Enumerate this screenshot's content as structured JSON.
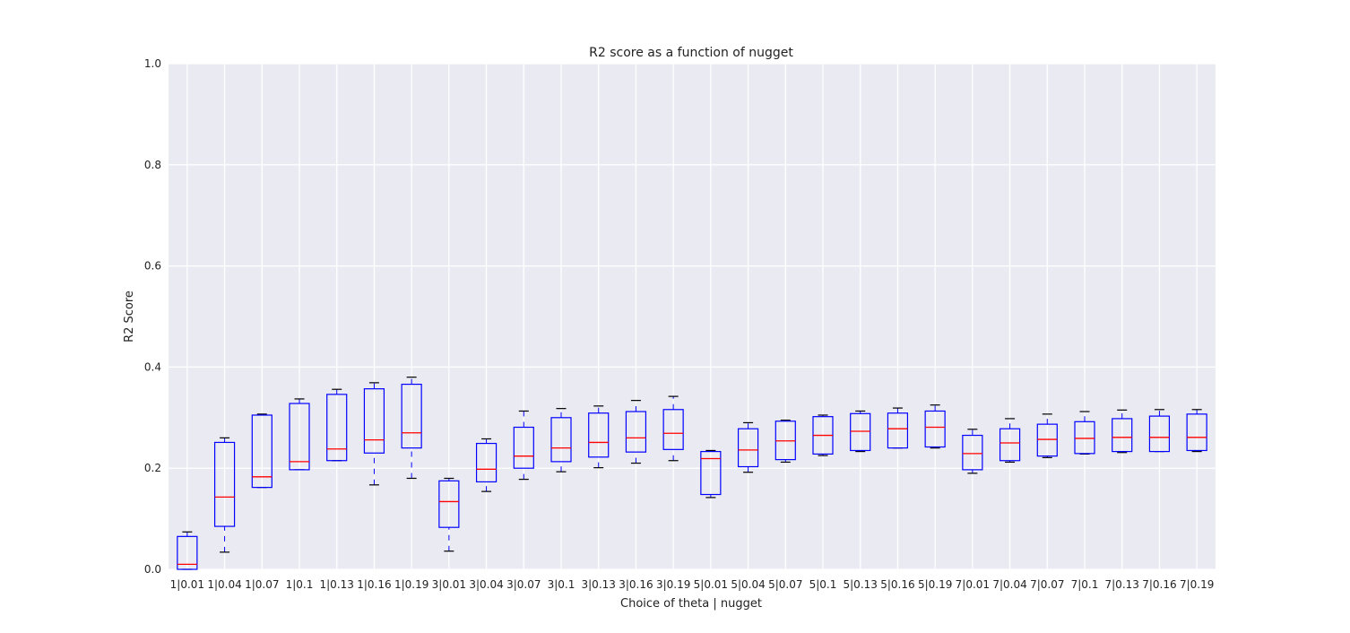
{
  "chart_data": {
    "type": "box",
    "title": "R2 score as a function of nugget",
    "xlabel": "Choice of theta | nugget",
    "ylabel": "R2 Score",
    "ylim": [
      0,
      1
    ],
    "yticks": [
      "0.0",
      "0.2",
      "0.4",
      "0.6",
      "0.8",
      "1.0"
    ],
    "grid": true,
    "colors": {
      "background": "#eaeaf2",
      "grid": "#ffffff",
      "box": "#0000ff",
      "median": "#ff0000",
      "cap": "#000000"
    },
    "categories": [
      "1|0.01",
      "1|0.04",
      "1|0.07",
      "1|0.1",
      "1|0.13",
      "1|0.16",
      "1|0.19",
      "3|0.01",
      "3|0.04",
      "3|0.07",
      "3|0.1",
      "3|0.13",
      "3|0.16",
      "3|0.19",
      "5|0.01",
      "5|0.04",
      "5|0.07",
      "5|0.1",
      "5|0.13",
      "5|0.16",
      "5|0.19",
      "7|0.01",
      "7|0.04",
      "7|0.07",
      "7|0.1",
      "7|0.13",
      "7|0.16",
      "7|0.19"
    ],
    "boxes": [
      {
        "whislo": 0.0,
        "q1": 0.0,
        "med": 0.01,
        "q3": 0.065,
        "whishi": 0.074
      },
      {
        "whislo": 0.034,
        "q1": 0.085,
        "med": 0.143,
        "q3": 0.251,
        "whishi": 0.26
      },
      {
        "whislo": 0.162,
        "q1": 0.162,
        "med": 0.183,
        "q3": 0.305,
        "whishi": 0.307
      },
      {
        "whislo": 0.197,
        "q1": 0.197,
        "med": 0.213,
        "q3": 0.328,
        "whishi": 0.337
      },
      {
        "whislo": 0.215,
        "q1": 0.215,
        "med": 0.238,
        "q3": 0.346,
        "whishi": 0.356
      },
      {
        "whislo": 0.167,
        "q1": 0.23,
        "med": 0.256,
        "q3": 0.357,
        "whishi": 0.369
      },
      {
        "whislo": 0.18,
        "q1": 0.24,
        "med": 0.27,
        "q3": 0.366,
        "whishi": 0.38
      },
      {
        "whislo": 0.036,
        "q1": 0.083,
        "med": 0.134,
        "q3": 0.175,
        "whishi": 0.18
      },
      {
        "whislo": 0.154,
        "q1": 0.173,
        "med": 0.198,
        "q3": 0.249,
        "whishi": 0.258
      },
      {
        "whislo": 0.178,
        "q1": 0.2,
        "med": 0.224,
        "q3": 0.281,
        "whishi": 0.313
      },
      {
        "whislo": 0.193,
        "q1": 0.213,
        "med": 0.24,
        "q3": 0.3,
        "whishi": 0.318
      },
      {
        "whislo": 0.201,
        "q1": 0.222,
        "med": 0.251,
        "q3": 0.309,
        "whishi": 0.323
      },
      {
        "whislo": 0.21,
        "q1": 0.232,
        "med": 0.26,
        "q3": 0.312,
        "whishi": 0.334
      },
      {
        "whislo": 0.215,
        "q1": 0.237,
        "med": 0.269,
        "q3": 0.316,
        "whishi": 0.342
      },
      {
        "whislo": 0.142,
        "q1": 0.148,
        "med": 0.219,
        "q3": 0.233,
        "whishi": 0.235
      },
      {
        "whislo": 0.192,
        "q1": 0.203,
        "med": 0.236,
        "q3": 0.278,
        "whishi": 0.29
      },
      {
        "whislo": 0.212,
        "q1": 0.217,
        "med": 0.254,
        "q3": 0.293,
        "whishi": 0.295
      },
      {
        "whislo": 0.225,
        "q1": 0.228,
        "med": 0.265,
        "q3": 0.302,
        "whishi": 0.305
      },
      {
        "whislo": 0.233,
        "q1": 0.235,
        "med": 0.273,
        "q3": 0.308,
        "whishi": 0.313
      },
      {
        "whislo": 0.24,
        "q1": 0.24,
        "med": 0.278,
        "q3": 0.309,
        "whishi": 0.319
      },
      {
        "whislo": 0.24,
        "q1": 0.242,
        "med": 0.281,
        "q3": 0.313,
        "whishi": 0.325
      },
      {
        "whislo": 0.19,
        "q1": 0.197,
        "med": 0.229,
        "q3": 0.265,
        "whishi": 0.277
      },
      {
        "whislo": 0.212,
        "q1": 0.215,
        "med": 0.25,
        "q3": 0.278,
        "whishi": 0.298
      },
      {
        "whislo": 0.221,
        "q1": 0.224,
        "med": 0.257,
        "q3": 0.287,
        "whishi": 0.307
      },
      {
        "whislo": 0.228,
        "q1": 0.229,
        "med": 0.259,
        "q3": 0.292,
        "whishi": 0.312
      },
      {
        "whislo": 0.231,
        "q1": 0.233,
        "med": 0.261,
        "q3": 0.298,
        "whishi": 0.315
      },
      {
        "whislo": 0.233,
        "q1": 0.233,
        "med": 0.261,
        "q3": 0.303,
        "whishi": 0.316
      },
      {
        "whislo": 0.233,
        "q1": 0.235,
        "med": 0.261,
        "q3": 0.307,
        "whishi": 0.316
      }
    ]
  }
}
